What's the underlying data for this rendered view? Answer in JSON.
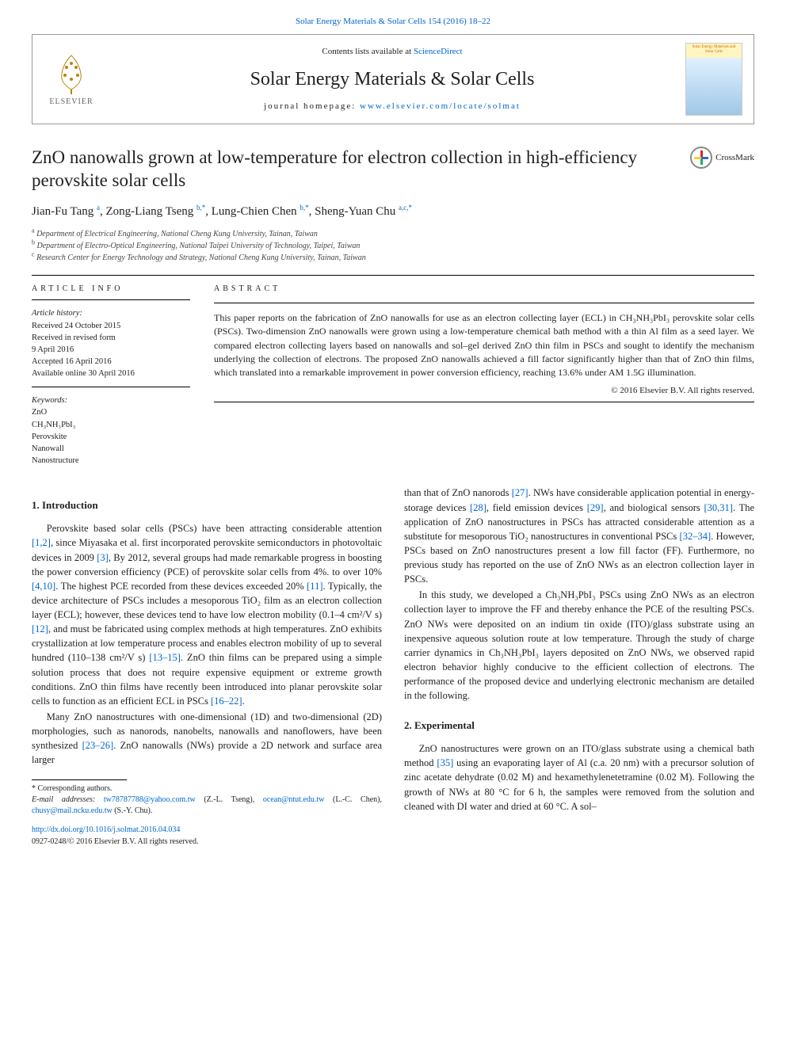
{
  "header": {
    "top_link": "Solar Energy Materials & Solar Cells 154 (2016) 18–22",
    "contents_line_prefix": "Contents lists available at ",
    "contents_line_link": "ScienceDirect",
    "journal_title": "Solar Energy Materials & Solar Cells",
    "homepage_prefix": "journal homepage: ",
    "homepage_link": "www.elsevier.com/locate/solmat",
    "elsevier_label": "ELSEVIER",
    "cover_label": "Solar Energy Materials and Solar Cells"
  },
  "article": {
    "title": "ZnO nanowalls grown at low-temperature for electron collection in high-efficiency perovskite solar cells",
    "crossmark_label": "CrossMark",
    "authors_html": "Jian-Fu Tang <sup>a</sup>, Zong-Liang Tseng <sup>b,*</sup>, Lung-Chien Chen <sup>b,*</sup>, Sheng-Yuan Chu <sup>a,c,*</sup>",
    "affiliations": [
      {
        "sup": "a",
        "text": "Department of Electrical Engineering, National Cheng Kung University, Tainan, Taiwan"
      },
      {
        "sup": "b",
        "text": "Department of Electro-Optical Engineering, National Taipei University of Technology, Taipei, Taiwan"
      },
      {
        "sup": "c",
        "text": "Research Center for Energy Technology and Strategy, National Cheng Kung University, Tainan, Taiwan"
      }
    ]
  },
  "info": {
    "heading": "ARTICLE INFO",
    "history_label": "Article history:",
    "history": [
      "Received 24 October 2015",
      "Received in revised form",
      "9 April 2016",
      "Accepted 16 April 2016",
      "Available online 30 April 2016"
    ],
    "keywords_label": "Keywords:",
    "keywords": [
      "ZnO",
      "CH₃NH₃PbI₃",
      "Perovskite",
      "Nanowall",
      "Nanostructure"
    ]
  },
  "abstract": {
    "heading": "ABSTRACT",
    "text": "This paper reports on the fabrication of ZnO nanowalls for use as an electron collecting layer (ECL) in CH₃NH₃PbI₃ perovskite solar cells (PSCs). Two-dimension ZnO nanowalls were grown using a low-temperature chemical bath method with a thin Al film as a seed layer. We compared electron collecting layers based on nanowalls and sol–gel derived ZnO thin film in PSCs and sought to identify the mechanism underlying the collection of electrons. The proposed ZnO nanowalls achieved a fill factor significantly higher than that of ZnO thin films, which translated into a remarkable improvement in power conversion efficiency, reaching 13.6% under AM 1.5G illumination.",
    "copyright": "© 2016 Elsevier B.V. All rights reserved."
  },
  "body": {
    "intro_heading": "1.  Introduction",
    "intro_p1": "Perovskite based solar cells (PSCs) have been attracting considerable attention [1,2], since Miyasaka et al. first incorporated perovskite semiconductors in photovoltaic devices in 2009 [3], By 2012, several groups had made remarkable progress in boosting the power conversion efficiency (PCE) of perovskite solar cells from 4%. to over 10% [4,10]. The highest PCE recorded from these devices exceeded 20% [11]. Typically, the device architecture of PSCs includes a mesoporous TiO₂ film as an electron collection layer (ECL); however, these devices tend to have low electron mobility (0.1–4 cm²/V s) [12], and must be fabricated using complex methods at high temperatures. ZnO exhibits crystallization at low temperature process and enables electron mobility of up to several hundred (110–138 cm²/V s) [13–15]. ZnO thin films can be prepared using a simple solution process that does not require expensive equipment or extreme growth conditions. ZnO thin films have recently been introduced into planar perovskite solar cells to function as an efficient ECL in PSCs [16–22].",
    "intro_p2": "Many ZnO nanostructures with one-dimensional (1D) and two-dimensional (2D) morphologies, such as nanorods, nanobelts, nanowalls and nanoflowers, have been synthesized [23–26]. ZnO nanowalls (NWs) provide a 2D network and surface area larger",
    "col2_p1": "than that of ZnO nanorods [27]. NWs have considerable application potential in energy-storage devices [28], field emission devices [29], and biological sensors [30,31]. The application of ZnO nanostructures in PSCs has attracted considerable attention as a substitute for mesoporous TiO₂ nanostructures in conventional PSCs [32–34]. However, PSCs based on ZnO nanostructures present a low fill factor (FF). Furthermore, no previous study has reported on the use of ZnO NWs as an electron collection layer in PSCs.",
    "col2_p2": "In this study, we developed a Ch₃NH₃PbI₃ PSCs using ZnO NWs as an electron collection layer to improve the FF and thereby enhance the PCE of the resulting PSCs. ZnO NWs were deposited on an indium tin oxide (ITO)/glass substrate using an inexpensive aqueous solution route at low temperature. Through the study of charge carrier dynamics in Ch₃NH₃PbI₃ layers deposited on ZnO NWs, we observed rapid electron behavior highly conducive to the efficient collection of electrons. The performance of the proposed device and underlying electronic mechanism are detailed in the following.",
    "exp_heading": "2.  Experimental",
    "exp_p1": "ZnO nanostructures were grown on an ITO/glass substrate using a chemical bath method [35] using an evaporating layer of Al (c.a. 20 nm) with a precursor solution of zinc acetate dehydrate (0.02 M) and hexamethylenetetramine (0.02 M). Following the growth of NWs at 80 °C for 6 h, the samples were removed from the solution and cleaned with DI water and dried at 60 °C. A sol–"
  },
  "footer": {
    "corr_label": "* Corresponding authors.",
    "email_label": "E-mail addresses: ",
    "emails": [
      {
        "addr": "tw78787788@yahoo.com.tw",
        "who": "(Z.-L. Tseng),"
      },
      {
        "addr": "ocean@ntut.edu.tw",
        "who": "(L.-C. Chen),"
      },
      {
        "addr": "chusy@mail.ncku.edu.tw",
        "who": "(S.-Y. Chu)."
      }
    ],
    "doi": "http://dx.doi.org/10.1016/j.solmat.2016.04.034",
    "issn": "0927-0248/© 2016 Elsevier B.V. All rights reserved."
  },
  "colors": {
    "link": "#0066cc",
    "text": "#222222",
    "border": "#999999"
  }
}
